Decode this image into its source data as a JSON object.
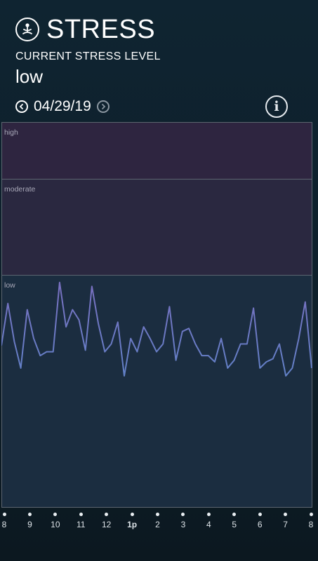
{
  "header": {
    "icon": "meditation-icon",
    "title": "STRESS",
    "subtitle": "CURRENT STRESS LEVEL",
    "level": "low",
    "date": "04/29/19",
    "prev_icon": "chevron-left-icon",
    "next_icon": "chevron-right-icon",
    "info_icon": "info-icon",
    "info_glyph": "i"
  },
  "chart_data": {
    "type": "line",
    "zones": [
      "high",
      "moderate",
      "low"
    ],
    "x_ticks": [
      "8",
      "9",
      "10",
      "11",
      "12",
      "1p",
      "2",
      "3",
      "4",
      "5",
      "6",
      "7",
      "8"
    ],
    "highlight_tick": "1p",
    "values": [
      0.39,
      0.93,
      0.44,
      0.1,
      0.85,
      0.48,
      0.26,
      0.31,
      0.31,
      1.2,
      0.63,
      0.85,
      0.72,
      0.33,
      1.15,
      0.67,
      0.31,
      0.41,
      0.69,
      0.0,
      0.48,
      0.31,
      0.63,
      0.48,
      0.31,
      0.41,
      0.89,
      0.2,
      0.57,
      0.61,
      0.41,
      0.26,
      0.26,
      0.18,
      0.48,
      0.1,
      0.2,
      0.41,
      0.41,
      0.87,
      0.1,
      0.18,
      0.22,
      0.41,
      0.0,
      0.1,
      0.48,
      0.95,
      0.1
    ],
    "colors": {
      "line_low": "#5b86c9",
      "line_high": "#7a6fc0"
    }
  }
}
